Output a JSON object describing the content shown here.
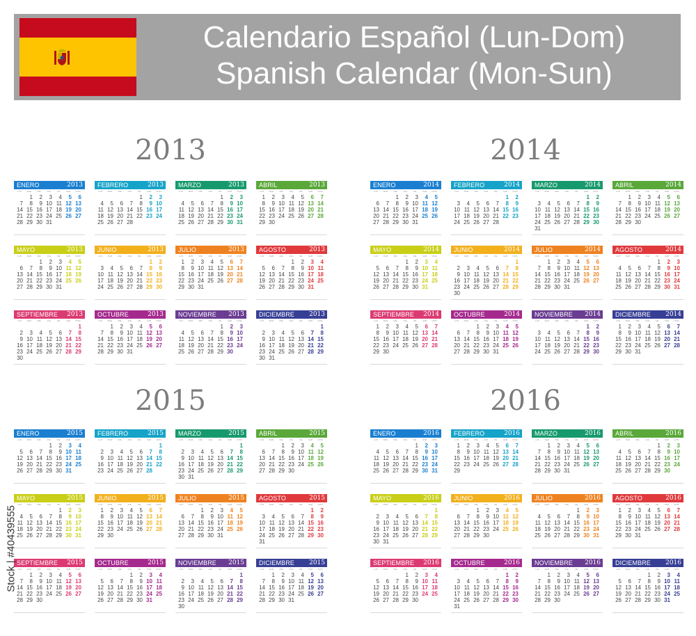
{
  "header": {
    "title_es": "Calendario Español (Lun-Dom)",
    "title_en": "Spanish Calendar (Mon-Sun)"
  },
  "colors": {
    "header_bg": "#a3a3a3",
    "flag_red": "#c60b1e",
    "flag_yellow": "#ffc400",
    "months": [
      "#1a7fd0",
      "#16a3c8",
      "#17996e",
      "#5aa83a",
      "#c9cf17",
      "#f2b01d",
      "#ef8220",
      "#e0393c",
      "#dc3a72",
      "#a52a8e",
      "#6a3c92",
      "#373f95"
    ]
  },
  "weekday_labels": [
    "LUN",
    "MAR",
    "MIE",
    "JUE",
    "VIE",
    "SAB",
    "DOM"
  ],
  "month_names": [
    "ENERO",
    "FEBRERO",
    "MARZO",
    "ABRIL",
    "MAYO",
    "JUNIO",
    "JULIO",
    "AGOSTO",
    "SEPTIEMBRE",
    "OCTUBRE",
    "NOVIEMBRE",
    "DICIEMBRE"
  ],
  "years": [
    {
      "year": "2013",
      "first_weekdays": [
        1,
        4,
        4,
        0,
        2,
        5,
        0,
        3,
        6,
        1,
        4,
        6
      ],
      "month_lengths": [
        31,
        28,
        31,
        30,
        31,
        30,
        31,
        31,
        30,
        31,
        30,
        31
      ]
    },
    {
      "year": "2014",
      "first_weekdays": [
        2,
        5,
        5,
        1,
        3,
        6,
        1,
        4,
        0,
        2,
        5,
        0
      ],
      "month_lengths": [
        31,
        28,
        31,
        30,
        31,
        30,
        31,
        31,
        30,
        31,
        30,
        31
      ]
    },
    {
      "year": "2015",
      "first_weekdays": [
        3,
        6,
        6,
        2,
        4,
        0,
        2,
        5,
        1,
        3,
        6,
        1
      ],
      "month_lengths": [
        31,
        28,
        31,
        30,
        31,
        30,
        31,
        31,
        30,
        31,
        30,
        31
      ]
    },
    {
      "year": "2016",
      "first_weekdays": [
        4,
        0,
        1,
        4,
        6,
        2,
        4,
        0,
        3,
        5,
        1,
        3
      ],
      "month_lengths": [
        31,
        29,
        31,
        30,
        31,
        30,
        31,
        31,
        30,
        31,
        30,
        31
      ]
    }
  ],
  "watermark": "Stock | #40439555"
}
